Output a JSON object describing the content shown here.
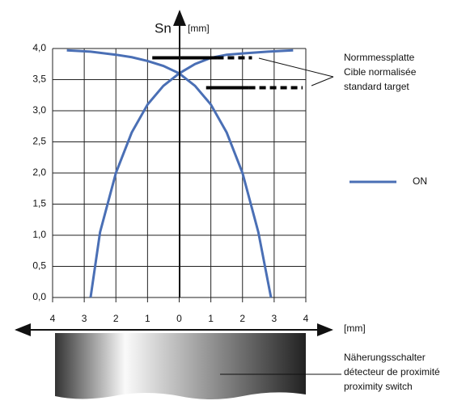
{
  "chart_data": {
    "type": "line",
    "y_label": "Sn",
    "y_unit": "[mm]",
    "x_unit": "[mm]",
    "xlim": [
      -4,
      4
    ],
    "ylim": [
      0,
      4
    ],
    "xticks": [
      {
        "value": -4,
        "label": "4"
      },
      {
        "value": -3,
        "label": "3"
      },
      {
        "value": -2,
        "label": "2"
      },
      {
        "value": -1,
        "label": "1"
      },
      0,
      1,
      2,
      3,
      4
    ],
    "yticks": [
      {
        "value": 0,
        "label": "0,0"
      },
      {
        "value": 0.5,
        "label": "0,5"
      },
      {
        "value": 1,
        "label": "1,0"
      },
      {
        "value": 1.5,
        "label": "1,5"
      },
      {
        "value": 2,
        "label": "2,0"
      },
      {
        "value": 2.5,
        "label": "2,5"
      },
      {
        "value": 3,
        "label": "3,0"
      },
      {
        "value": 3.5,
        "label": "3,5"
      },
      {
        "value": 4,
        "label": "4,0"
      }
    ],
    "grid": true,
    "series": [
      {
        "name": "ON",
        "color": "#4a6fb5",
        "x": [
          -2.8,
          -2.5,
          -2,
          -1.5,
          -1,
          -0.5,
          0,
          0.5,
          1,
          1.5,
          2,
          2.8,
          3.6,
          null,
          -3.55,
          -2.8,
          -2,
          -1.5,
          -1,
          -0.5,
          0,
          0.5,
          1,
          1.5,
          2,
          2.5,
          2.9
        ],
        "values": [
          0,
          1.05,
          2,
          2.65,
          3.1,
          3.4,
          3.6,
          3.75,
          3.85,
          3.9,
          3.92,
          3.95,
          3.97,
          null,
          3.97,
          3.95,
          3.9,
          3.86,
          3.8,
          3.72,
          3.6,
          3.4,
          3.1,
          2.65,
          2,
          1.05,
          0
        ]
      }
    ],
    "targets": [
      {
        "y": 3.85,
        "x_start": -0.85,
        "x_solid_end": 1.2,
        "x_end": 2.3
      },
      {
        "y": 3.37,
        "x_start": 0.85,
        "x_solid_end": 2.2,
        "x_end": 3.9
      }
    ],
    "target_label": [
      "Normmessplatte",
      "Cible normalisée",
      "standard target"
    ],
    "sensor_label": [
      "Näherungsschalter",
      "détecteur de proximité",
      "proximity switch"
    ]
  }
}
